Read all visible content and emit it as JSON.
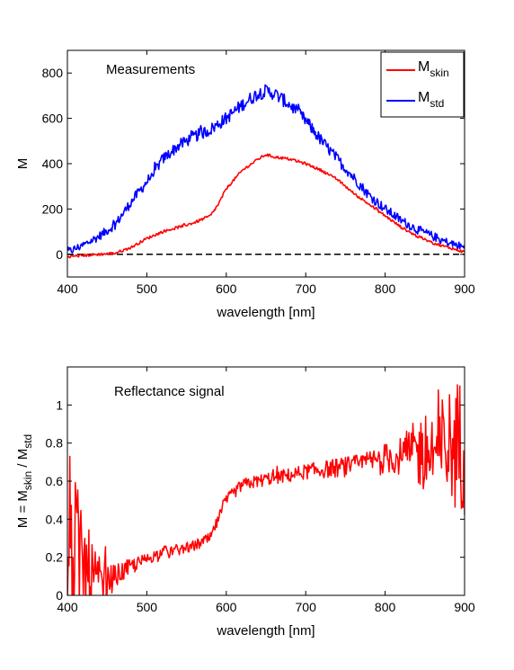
{
  "chart_data": [
    {
      "type": "line",
      "title": "",
      "annotation": "Measurements",
      "xlabel": "wavelength [nm]",
      "ylabel": "M",
      "xlim": [
        400,
        900
      ],
      "ylim": [
        -100,
        900
      ],
      "xticks": [
        400,
        500,
        600,
        700,
        800,
        900
      ],
      "yticks": [
        0,
        200,
        400,
        600,
        800
      ],
      "grid": false,
      "legend_position": "top-right",
      "reference_line": {
        "y": 0,
        "style": "dashed",
        "color": "#000000"
      },
      "series": [
        {
          "name": "M_skin",
          "legend_main": "M",
          "legend_sub": "skin",
          "color": "#ff0000",
          "noise": 6,
          "x": [
            400,
            420,
            440,
            460,
            480,
            500,
            520,
            540,
            560,
            580,
            590,
            600,
            620,
            640,
            650,
            660,
            680,
            700,
            720,
            740,
            760,
            780,
            800,
            820,
            840,
            860,
            880,
            900
          ],
          "y": [
            -10,
            -5,
            0,
            5,
            30,
            70,
            100,
            120,
            140,
            170,
            220,
            290,
            370,
            420,
            440,
            430,
            420,
            400,
            370,
            330,
            270,
            220,
            170,
            120,
            80,
            50,
            30,
            10
          ]
        },
        {
          "name": "M_std",
          "legend_main": "M",
          "legend_sub": "std",
          "color": "#0000ff",
          "noise": 30,
          "x": [
            400,
            420,
            440,
            460,
            480,
            500,
            520,
            540,
            560,
            580,
            600,
            620,
            640,
            650,
            660,
            680,
            700,
            720,
            740,
            760,
            780,
            800,
            820,
            840,
            860,
            880,
            900
          ],
          "y": [
            10,
            40,
            80,
            130,
            230,
            320,
            420,
            480,
            520,
            550,
            600,
            660,
            710,
            720,
            710,
            660,
            590,
            500,
            420,
            340,
            260,
            200,
            150,
            110,
            80,
            50,
            30
          ]
        }
      ]
    },
    {
      "type": "line",
      "title": "",
      "annotation": "Reflectance signal",
      "xlabel": "wavelength [nm]",
      "ylabel": {
        "prefix": "M = M",
        "sub1": "skin",
        "mid": " / M",
        "sub2": "std"
      },
      "xlim": [
        400,
        900
      ],
      "ylim": [
        0,
        1.2
      ],
      "xticks": [
        400,
        500,
        600,
        700,
        800,
        900
      ],
      "yticks": [
        0,
        0.2,
        0.4,
        0.6,
        0.8,
        1
      ],
      "grid": false,
      "series": [
        {
          "name": "",
          "color": "#ff0000",
          "x": [
            400,
            420,
            440,
            460,
            480,
            500,
            520,
            540,
            560,
            580,
            590,
            600,
            620,
            640,
            660,
            680,
            700,
            720,
            740,
            760,
            780,
            800,
            820,
            840,
            860,
            880,
            900
          ],
          "y": [
            0.3,
            0.15,
            0.05,
            0.1,
            0.15,
            0.19,
            0.23,
            0.24,
            0.26,
            0.3,
            0.4,
            0.5,
            0.58,
            0.6,
            0.62,
            0.63,
            0.65,
            0.66,
            0.67,
            0.68,
            0.7,
            0.72,
            0.73,
            0.75,
            0.75,
            0.78,
            0.8
          ],
          "noise_envelope": [
            [
              400,
              0.5
            ],
            [
              430,
              0.2
            ],
            [
              460,
              0.06
            ],
            [
              500,
              0.03
            ],
            [
              600,
              0.03
            ],
            [
              700,
              0.04
            ],
            [
              780,
              0.06
            ],
            [
              820,
              0.1
            ],
            [
              850,
              0.22
            ],
            [
              900,
              0.38
            ]
          ]
        }
      ]
    }
  ]
}
